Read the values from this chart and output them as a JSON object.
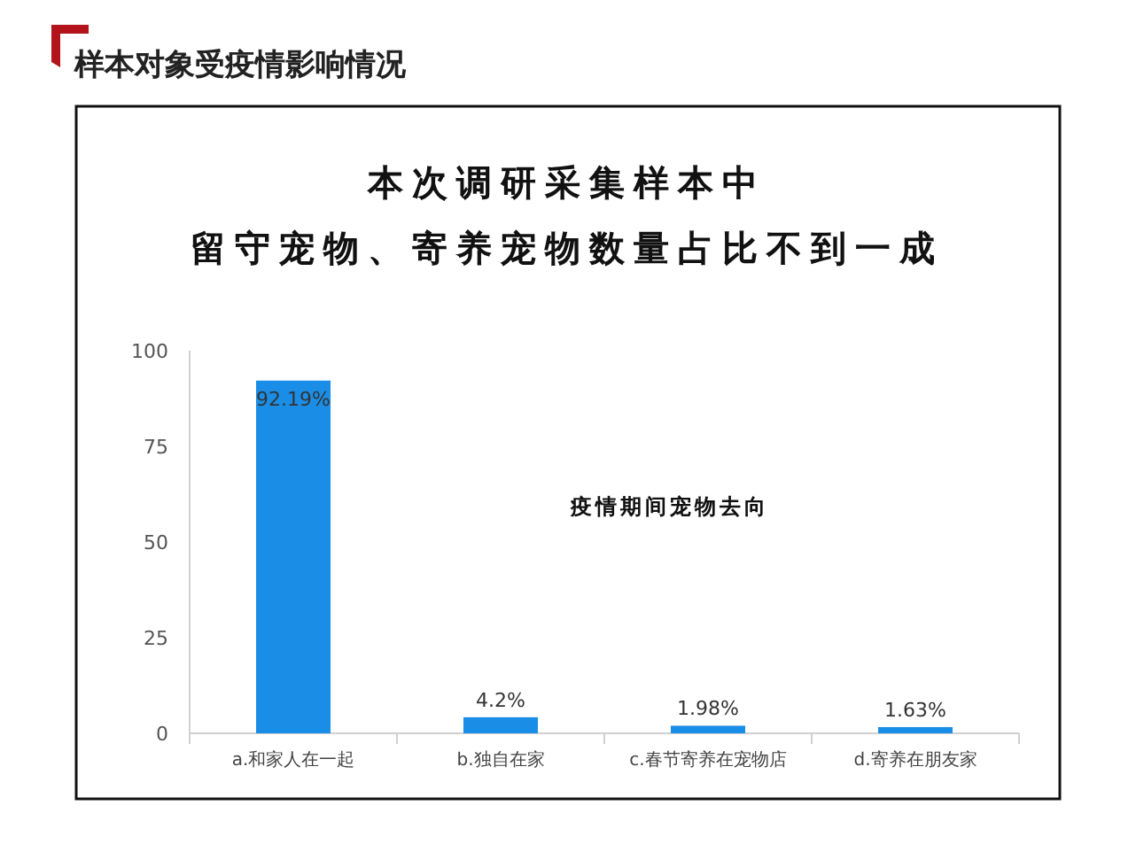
{
  "chart_data": {
    "type": "bar",
    "title": "样本对象受疫情影响情况",
    "subtitle": "本次调研采集样本中",
    "annotations": [
      "留守宠物、寄养宠物数量占比不到一成",
      "疫情期间宠物去向"
    ],
    "categories": [
      "a.和家人在一起",
      "b.独自在家",
      "c.春节寄养在宠物店",
      "d.寄养在朋友家"
    ],
    "values": [
      92.19,
      4.2,
      1.98,
      1.63
    ],
    "value_labels": [
      "92.19%",
      "4.2%",
      "1.98%",
      "1.63%"
    ],
    "color": "#1a8ee6",
    "ylim": [
      0,
      100
    ],
    "yticks": [
      0,
      25,
      50,
      75,
      100
    ],
    "grid": false
  }
}
